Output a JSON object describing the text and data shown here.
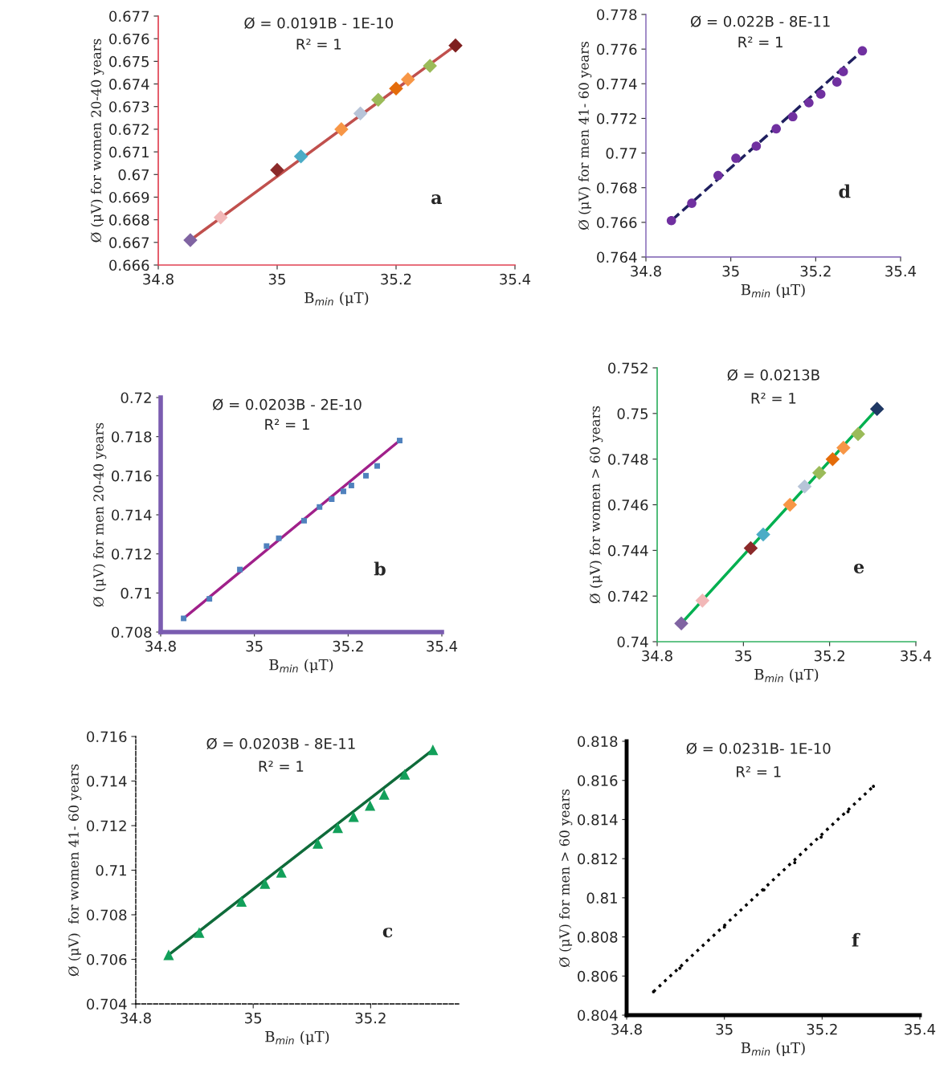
{
  "chart_data": [
    {
      "type": "scatter",
      "xlabel": "B$_{min}$ (μT)",
      "ylabel": "Ø (μV) for women 20-40 years",
      "xlim": [
        34.8,
        35.4
      ],
      "xticks": [
        34.8,
        35,
        35.2,
        35.4
      ],
      "ylim": [
        0.666,
        0.677
      ],
      "yticks": [
        0.666,
        0.667,
        0.668,
        0.669,
        0.67,
        0.671,
        0.672,
        0.673,
        0.674,
        0.675,
        0.676,
        0.677
      ],
      "grid": false,
      "legend": false,
      "annotations": [
        "Ø = 0.0191B - 1E-10",
        "R² = 1",
        "a"
      ],
      "series": [
        {
          "type": "scatter",
          "marker": "diamond",
          "x": [
            34.854,
            34.905,
            35.0,
            35.04,
            35.108,
            35.14,
            35.17,
            35.2,
            35.22,
            35.257,
            35.3
          ],
          "values": [
            0.6671,
            0.6681,
            0.6702,
            0.6708,
            0.672,
            0.6727,
            0.6733,
            0.6738,
            0.6742,
            0.6748,
            0.6757
          ],
          "colors": [
            "#8064a2",
            "#f2b8b8",
            "#8b2a2a",
            "#4bacc6",
            "#f79646",
            "#b7c4d8",
            "#9bbb59",
            "#e46c0a",
            "#f79646",
            "#9bbb59",
            "#7f1f1f"
          ]
        },
        {
          "type": "line",
          "line_style": "solid",
          "color": "#c0504d",
          "x": [
            34.854,
            35.3
          ],
          "values": [
            0.6671,
            0.6757
          ]
        }
      ]
    },
    {
      "type": "scatter",
      "xlabel": "B$_{min}$ (μT)",
      "ylabel": "Ø (μV) for men 41- 60 years",
      "xlim": [
        34.8,
        35.4
      ],
      "xticks": [
        34.8,
        35,
        35.2,
        35.4
      ],
      "ylim": [
        0.764,
        0.778
      ],
      "yticks": [
        0.764,
        0.766,
        0.768,
        0.77,
        0.772,
        0.774,
        0.776,
        0.778
      ],
      "grid": false,
      "legend": false,
      "annotations": [
        "Ø = 0.022B - 8E-11",
        "R² = 1",
        "d"
      ],
      "series": [
        {
          "type": "scatter",
          "marker": "circle",
          "color": "#7030a0",
          "x": [
            34.86,
            34.908,
            34.97,
            35.012,
            35.06,
            35.107,
            35.146,
            35.184,
            35.212,
            35.25,
            35.265,
            35.31
          ],
          "values": [
            0.7661,
            0.7671,
            0.7687,
            0.7697,
            0.7704,
            0.7714,
            0.7721,
            0.7729,
            0.7734,
            0.7741,
            0.7747,
            0.7759
          ]
        },
        {
          "type": "line",
          "line_style": "dashed",
          "color": "#1f1f5f",
          "x": [
            34.86,
            35.31
          ],
          "values": [
            0.7661,
            0.7759
          ]
        }
      ]
    },
    {
      "type": "scatter",
      "xlabel": "B$_{min}$ (μT)",
      "ylabel": "Ø (μV) for men 20-40 years",
      "xlim": [
        34.8,
        35.4
      ],
      "xticks": [
        34.8,
        35,
        35.2,
        35.4
      ],
      "ylim": [
        0.708,
        0.72
      ],
      "yticks": [
        0.708,
        0.71,
        0.712,
        0.714,
        0.716,
        0.718,
        0.72
      ],
      "grid": false,
      "legend": false,
      "annotations": [
        "Ø = 0.0203B - 2E-10",
        "R² = 1",
        "b"
      ],
      "series": [
        {
          "type": "scatter",
          "marker": "square",
          "color": "#4f81bd",
          "x": [
            34.849,
            34.904,
            34.969,
            35.026,
            35.052,
            35.106,
            35.139,
            35.165,
            35.19,
            35.207,
            35.238,
            35.262,
            35.31
          ],
          "values": [
            0.7087,
            0.7097,
            0.7112,
            0.7124,
            0.7128,
            0.7137,
            0.7144,
            0.7148,
            0.7152,
            0.7155,
            0.716,
            0.7165,
            0.7178
          ]
        },
        {
          "type": "line",
          "line_style": "solid",
          "color": "#a0208a",
          "x": [
            34.849,
            35.31
          ],
          "values": [
            0.7087,
            0.7178
          ]
        }
      ]
    },
    {
      "type": "scatter",
      "xlabel": "B$_{min}$ (μT)",
      "ylabel": "Ø (μV) for women > 60 years",
      "xlim": [
        34.8,
        35.4
      ],
      "xticks": [
        34.8,
        35,
        35.2,
        35.4
      ],
      "ylim": [
        0.74,
        0.752
      ],
      "yticks": [
        0.74,
        0.742,
        0.744,
        0.746,
        0.748,
        0.75,
        0.752
      ],
      "grid": false,
      "legend": false,
      "annotations": [
        "Ø = 0.0213B",
        "R² = 1",
        "e"
      ],
      "series": [
        {
          "type": "scatter",
          "marker": "diamond",
          "x": [
            34.856,
            34.905,
            35.017,
            35.046,
            35.108,
            35.142,
            35.176,
            35.207,
            35.232,
            35.266,
            35.31
          ],
          "values": [
            0.7408,
            0.7418,
            0.7441,
            0.7447,
            0.746,
            0.7468,
            0.7474,
            0.748,
            0.7485,
            0.7491,
            0.7502
          ],
          "colors": [
            "#8064a2",
            "#f2b8b8",
            "#8b2a2a",
            "#4bacc6",
            "#f79646",
            "#b7c4d8",
            "#9bbb59",
            "#e46c0a",
            "#f79646",
            "#9bbb59",
            "#1f3864"
          ]
        },
        {
          "type": "line",
          "line_style": "solid",
          "color": "#00b050",
          "x": [
            34.856,
            35.31
          ],
          "values": [
            0.7408,
            0.7502
          ]
        }
      ]
    },
    {
      "type": "scatter",
      "xlabel": "B$_{min}$ (μT)",
      "ylabel": "Ø (μV)  for women 41- 60 years",
      "xlim": [
        34.8,
        35.35
      ],
      "xticks": [
        34.8,
        35,
        35.2
      ],
      "ylim": [
        0.704,
        0.716
      ],
      "yticks": [
        0.704,
        0.706,
        0.708,
        0.71,
        0.712,
        0.714,
        0.716
      ],
      "grid": false,
      "legend": false,
      "annotations": [
        "Ø = 0.0203B - 8E-11",
        "R² = 1",
        "c"
      ],
      "series": [
        {
          "type": "scatter",
          "marker": "triangle",
          "color": "#12a05a",
          "x": [
            34.856,
            34.908,
            34.98,
            35.02,
            35.048,
            35.11,
            35.144,
            35.171,
            35.199,
            35.223,
            35.258,
            35.306
          ],
          "values": [
            0.7062,
            0.7072,
            0.7086,
            0.7094,
            0.7099,
            0.7112,
            0.7119,
            0.7124,
            0.7129,
            0.7134,
            0.7143,
            0.7154
          ]
        },
        {
          "type": "line",
          "line_style": "solid",
          "color": "#0f6b3a",
          "x": [
            34.856,
            35.306
          ],
          "values": [
            0.7062,
            0.7154
          ]
        }
      ]
    },
    {
      "type": "scatter",
      "xlabel": "B$_{min}$ (μT)",
      "ylabel": "Ø (μV) for men > 60 years",
      "xlim": [
        34.8,
        35.4
      ],
      "xticks": [
        34.8,
        35,
        35.2,
        35.4
      ],
      "ylim": [
        0.804,
        0.818
      ],
      "yticks": [
        0.804,
        0.806,
        0.808,
        0.81,
        0.812,
        0.814,
        0.816,
        0.818
      ],
      "grid": false,
      "legend": false,
      "annotations": [
        "Ø = 0.0231B- 1E-10",
        "R² = 1",
        "f"
      ],
      "series": [
        {
          "type": "scatter",
          "marker": "circle",
          "color": "#000000",
          "x": [
            34.855,
            34.909,
            35.0,
            35.081,
            35.144,
            35.198,
            35.253,
            35.305
          ],
          "values": [
            0.8052,
            0.8064,
            0.8085,
            0.8104,
            0.8118,
            0.8131,
            0.8144,
            0.8157
          ]
        },
        {
          "type": "line",
          "line_style": "dotted",
          "color": "#000000",
          "x": [
            34.855,
            35.305
          ],
          "values": [
            0.8052,
            0.8157
          ]
        }
      ]
    }
  ]
}
